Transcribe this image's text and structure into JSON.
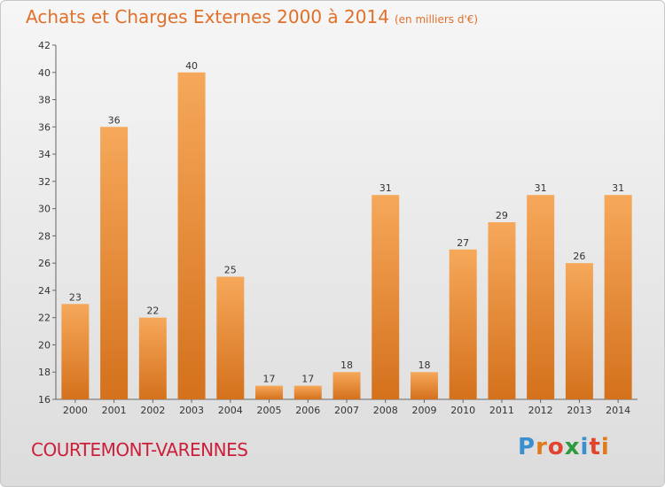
{
  "title": "Achats et Charges Externes 2000 à 2014",
  "subtitle": "(en milliers d'€)",
  "commune": "COURTEMONT-VARENNES",
  "logo": {
    "text": "Proxiti",
    "colors": [
      "#3a8fd0",
      "#e07b1b",
      "#e0432e",
      "#2e9b3e",
      "#3a8fd0",
      "#e0432e",
      "#e07b1b"
    ]
  },
  "colors": {
    "bar_light": "#f6a85a",
    "bar_dark": "#d4711c",
    "title": "#e0702a",
    "commune": "#cc1f3a"
  },
  "chart_data": {
    "type": "bar",
    "categories": [
      "2000",
      "2001",
      "2002",
      "2003",
      "2004",
      "2005",
      "2006",
      "2007",
      "2008",
      "2009",
      "2010",
      "2011",
      "2012",
      "2013",
      "2014"
    ],
    "values": [
      23,
      36,
      22,
      40,
      25,
      17,
      17,
      18,
      31,
      18,
      27,
      29,
      31,
      26,
      31
    ],
    "ylim": [
      16,
      42
    ],
    "yticks": [
      16,
      18,
      20,
      22,
      24,
      26,
      28,
      30,
      32,
      34,
      36,
      38,
      40,
      42
    ],
    "grid": false
  }
}
